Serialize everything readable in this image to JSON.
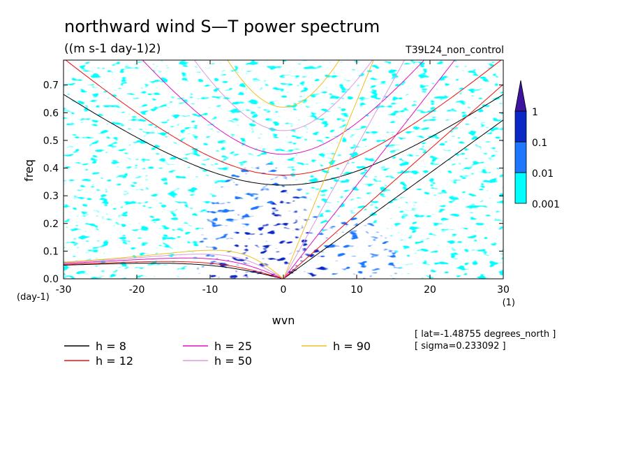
{
  "header": {
    "title": "northward wind S—T power spectrum",
    "units": "((m s-1 day-1)2)",
    "run": "T39L24_non_control"
  },
  "info": {
    "lat": "[ lat=-1.48755 degrees_north ]",
    "sigma": "[ sigma=0.233092 ]"
  },
  "chart_data": {
    "type": "heatmap",
    "title": "northward wind S—T power spectrum",
    "subtitle": "((m s-1 day-1)2)",
    "xlabel": "wvn",
    "ylabel": "freq",
    "x_unit": "(1)",
    "y_unit": "(day-1)",
    "xlim": [
      -30,
      30
    ],
    "ylim": [
      0,
      0.79
    ],
    "x_ticks": [
      -30,
      -20,
      -10,
      0,
      10,
      20,
      30
    ],
    "y_ticks": [
      0.0,
      0.1,
      0.2,
      0.3,
      0.4,
      0.5,
      0.6,
      0.7
    ],
    "x_tick_labels": [
      "-30",
      "-20",
      "-10",
      "0",
      "10",
      "20",
      "30"
    ],
    "y_tick_labels": [
      "0.0",
      "0.1",
      "0.2",
      "0.3",
      "0.4",
      "0.5",
      "0.6",
      "0.7"
    ],
    "colorbar": {
      "levels": [
        "0.001",
        "0.01",
        "0.1",
        "1"
      ],
      "colors": [
        "#00ffff",
        "#1e78ff",
        "#0a28c8",
        "#3c14a0"
      ]
    },
    "legend": [
      {
        "label": "h =  8",
        "color": "#000000"
      },
      {
        "label": "h = 12",
        "color": "#ee1111"
      },
      {
        "label": "h = 25",
        "color": "#e010c0"
      },
      {
        "label": "h = 50",
        "color": "#dd99dd"
      },
      {
        "label": "h = 90",
        "color": "#f0c020"
      }
    ],
    "dispersion_h": [
      8,
      12,
      25,
      50,
      90
    ],
    "field_regions": [
      {
        "level": 0,
        "x": [
          -30,
          30
        ],
        "y": [
          0.0,
          0.79
        ]
      },
      {
        "level": 1,
        "x": [
          -12,
          6
        ],
        "y": [
          0.0,
          0.42
        ]
      },
      {
        "level": 1,
        "x": [
          3,
          16
        ],
        "y": [
          0.0,
          0.22
        ]
      },
      {
        "level": 2,
        "x": [
          -10,
          6
        ],
        "y": [
          0.0,
          0.2
        ]
      },
      {
        "level": 2,
        "x": [
          -3,
          4
        ],
        "y": [
          0.0,
          0.33
        ]
      }
    ]
  }
}
